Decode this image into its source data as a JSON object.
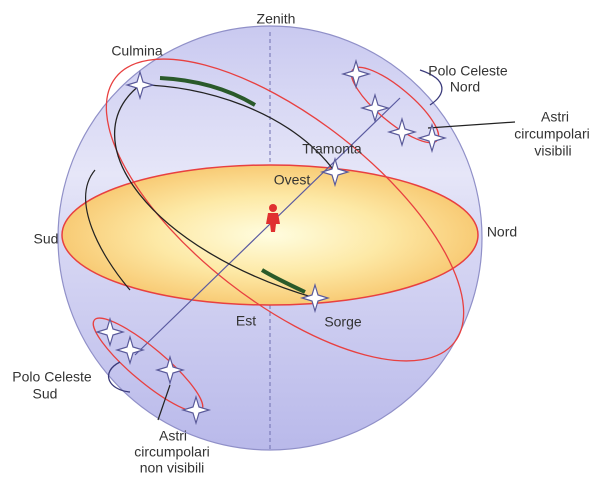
{
  "labels": {
    "zenith": "Zenith",
    "culmina": "Culmina",
    "polo_nord": [
      "Polo Celeste",
      "Nord"
    ],
    "astri_visibili": [
      "Astri",
      "circumpolari",
      "visibili"
    ],
    "tramonta": "Tramonta",
    "ovest": "Ovest",
    "sud": "Sud",
    "nord": "Nord",
    "est": "Est",
    "sorge": "Sorge",
    "polo_sud": [
      "Polo Celeste",
      "Sud"
    ],
    "astri_non_visibili": [
      "Astri",
      "circumpolari",
      "non visibili"
    ]
  }
}
